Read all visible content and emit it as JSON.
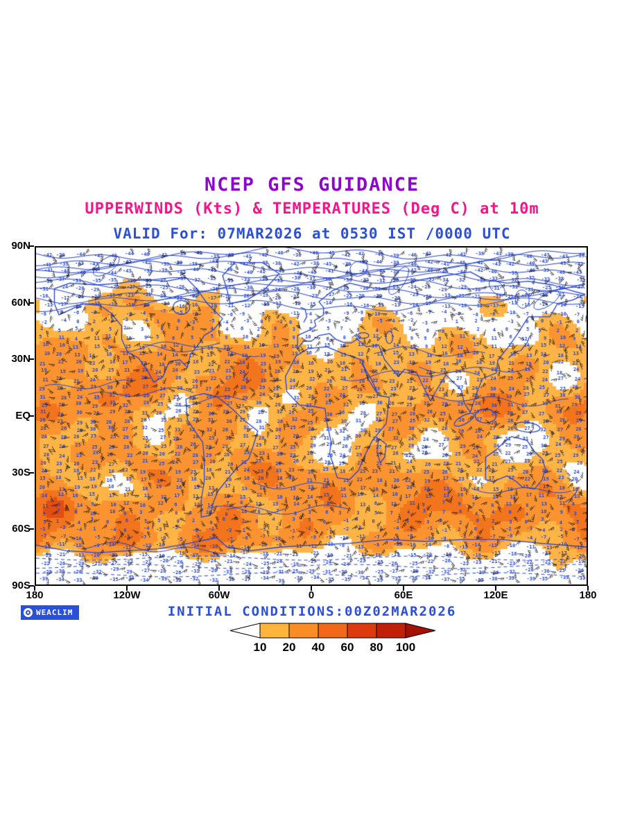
{
  "titles": {
    "line1": "NCEP GFS GUIDANCE",
    "line2": "UPPERWINDS (Kts) & TEMPERATURES (Deg C) at 10m",
    "line3": "VALID For: 07MAR2026 at 0530 IST /0000 UTC"
  },
  "map": {
    "y_axis_labels": [
      "90N",
      "60N",
      "30N",
      "EQ",
      "30S",
      "60S",
      "90S"
    ],
    "x_axis_labels": [
      "180",
      "120W",
      "60W",
      "0",
      "60E",
      "120E",
      "180"
    ],
    "coast_color": "#2442CE",
    "number_color": "#2345D2",
    "barb_color": "#111111",
    "fill_colors": [
      "#FFB446",
      "#FB9430",
      "#F2741C",
      "#E34E12"
    ]
  },
  "footer": {
    "brand": "WEACLIM",
    "initial_conditions": "INITIAL CONDITIONS:00Z02MAR2026"
  },
  "colorbar": {
    "labels": [
      "10",
      "20",
      "40",
      "60",
      "80",
      "100"
    ],
    "segment_colors": [
      "#FFB43C",
      "#FB8D26",
      "#F2681B",
      "#DE3A0F",
      "#C21F08"
    ],
    "left_arrow_color": "#FFFFFF",
    "right_arrow_color": "#A31105"
  },
  "colors": {
    "title1": "#8E06CE",
    "title2": "#F5148C",
    "valid_line": "#2B4FD8",
    "brand_bg": "#2B50D8",
    "axis_text": "#000000"
  }
}
